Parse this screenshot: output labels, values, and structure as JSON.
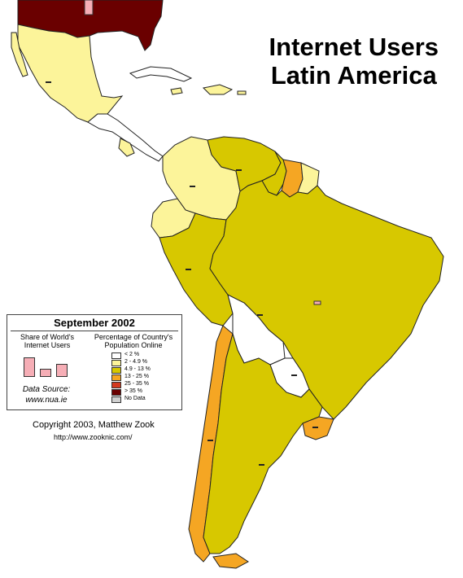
{
  "title_line1": "Internet Users",
  "title_line2": "Latin America",
  "colors": {
    "lt2": "#ffffff",
    "c2_4_9": "#fcf49a",
    "c4_9_13": "#d7c800",
    "c13_25": "#f5a623",
    "c25_35": "#d43a1f",
    "gt35": "#6a0000",
    "nodata": "#d0d0d0",
    "share_bar": "#f6aeb6"
  },
  "legend": {
    "title": "September 2002",
    "share_heading_1": "Share of World's",
    "share_heading_2": "Internet Users",
    "pct_heading_1": "Percentage of Country's",
    "pct_heading_2": "Population Online",
    "source_label": "Data Source:",
    "source_url": "www.nua.ie",
    "classes": [
      {
        "label": "< 2 %",
        "color": "#ffffff"
      },
      {
        "label": "2 - 4.9 %",
        "color": "#fcf49a"
      },
      {
        "label": "4.9 - 13 %",
        "color": "#d7c800"
      },
      {
        "label": "13 - 25 %",
        "color": "#f5a623"
      },
      {
        "label": "25 - 35 %",
        "color": "#d43a1f"
      },
      {
        "label": "> 35 %",
        "color": "#6a0000"
      },
      {
        "label": "No Data",
        "color": "#d0d0d0"
      }
    ]
  },
  "copyright": "Copyright 2003, Matthew Zook",
  "url": "http://www.zooknic.com/",
  "countries": [
    {
      "name": "United States",
      "class": "> 35 %"
    },
    {
      "name": "Mexico",
      "class": "2 - 4.9 %"
    },
    {
      "name": "Cuba",
      "class": "< 2 %"
    },
    {
      "name": "Colombia",
      "class": "2 - 4.9 %"
    },
    {
      "name": "Venezuela",
      "class": "4.9 - 13 %"
    },
    {
      "name": "Guyana",
      "class": "4.9 - 13 %"
    },
    {
      "name": "Suriname",
      "class": "13 - 25 %"
    },
    {
      "name": "French Guiana",
      "class": "2 - 4.9 %"
    },
    {
      "name": "Ecuador",
      "class": "2 - 4.9 %"
    },
    {
      "name": "Peru",
      "class": "4.9 - 13 %"
    },
    {
      "name": "Brazil",
      "class": "4.9 - 13 %"
    },
    {
      "name": "Bolivia",
      "class": "< 2 %"
    },
    {
      "name": "Paraguay",
      "class": "< 2 %"
    },
    {
      "name": "Chile",
      "class": "13 - 25 %"
    },
    {
      "name": "Argentina",
      "class": "4.9 - 13 %"
    },
    {
      "name": "Uruguay",
      "class": "13 - 25 %"
    }
  ]
}
